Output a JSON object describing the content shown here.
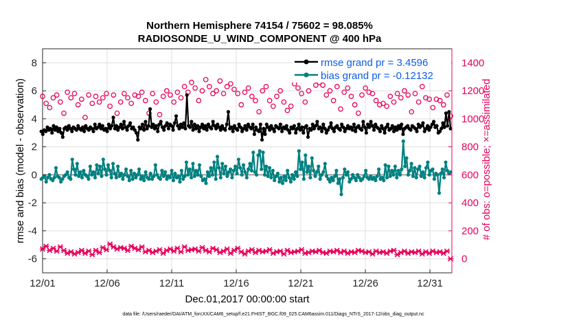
{
  "chart_data": {
    "type": "line",
    "title": "Northern Hemisphere 74154 / 75602 = 98.085%",
    "subtitle": "RADIOSONDE_U_WIND_COMPONENT @ 400 hPa",
    "xlabel": "Dec.01,2017 00:00:00 start",
    "ylabel_left": "rmse and bias (model - observation)",
    "ylabel_right": "# of obs: o=possible; ×=assimilated",
    "footer": "data file: /Users/raeder/DAI/ATM_forcXX/CAM6_setup/f.e21.FHIST_BGC.f09_025.CAM6assim.011/Diags_NTrS_2017-12/obs_diag_output.nc",
    "x_range": [
      0,
      31.7
    ],
    "y_left_range": [
      -7,
      9
    ],
    "y_right_range": [
      -100,
      1500
    ],
    "x_ticks": [
      0,
      5,
      10,
      15,
      20,
      25,
      30
    ],
    "x_tick_labels": [
      "12/01",
      "12/06",
      "12/11",
      "12/16",
      "12/21",
      "12/26",
      "12/31"
    ],
    "y_left_ticks": [
      -6,
      -4,
      -2,
      0,
      2,
      4,
      6,
      8
    ],
    "y_left_tick_labels": [
      "-6",
      "-4",
      "-2",
      "0",
      "2",
      "4",
      "6",
      "8"
    ],
    "y_right_ticks": [
      0,
      200,
      400,
      600,
      800,
      1000,
      1200,
      1400
    ],
    "y_right_tick_labels": [
      "0",
      "200",
      "400",
      "600",
      "800",
      "1000",
      "1200",
      "1400"
    ],
    "grid": true,
    "legend_position": "top-right",
    "series": [
      {
        "name": "rmse grand pr = 3.4596",
        "axis": "left",
        "color": "#000000",
        "values": [
          3.1,
          2.9,
          3.2,
          3.1,
          3.4,
          3.2,
          3.3,
          3.0,
          3.5,
          3.2,
          3.4,
          3.1,
          3.3,
          3.0,
          2.7,
          3.3,
          3.4,
          3.2,
          3.5,
          3.3,
          3.1,
          3.4,
          3.3,
          3.2,
          3.5,
          3.3,
          3.2,
          3.4,
          3.1,
          3.5,
          3.3,
          3.2,
          3.4,
          3.3,
          3.1,
          3.6,
          3.3,
          3.4,
          3.6,
          3.3,
          3.5,
          3.2,
          3.3,
          3.1,
          3.6,
          3.3,
          3.5,
          4.1,
          3.3,
          3.5,
          3.2,
          3.4,
          3.6,
          3.3,
          3.8,
          3.4,
          3.2,
          3.5,
          3.7,
          3.3,
          3.4,
          3.2,
          3.0,
          2.5,
          3.4,
          3.3,
          3.6,
          3.2,
          3.8,
          3.3,
          3.5,
          4.7,
          3.4,
          3.6,
          3.3,
          3.5,
          3.1,
          3.6,
          3.8,
          3.4,
          3.2,
          3.5,
          3.7,
          3.3,
          3.6,
          3.5,
          3.2,
          3.7,
          4.2,
          3.5,
          3.3,
          3.6,
          3.4,
          3.7,
          3.3,
          5.7,
          3.5,
          3.4,
          3.8,
          3.2,
          3.6,
          3.3,
          3.5,
          3.1,
          3.4,
          3.6,
          3.3,
          3.5,
          3.2,
          3.6,
          3.4,
          3.3,
          3.8,
          3.5,
          3.3,
          3.6,
          3.4,
          3.2,
          3.5,
          3.3,
          3.2,
          3.6,
          4.5,
          3.3,
          3.4,
          3.1,
          3.5,
          3.3,
          3.2,
          3.6,
          3.4,
          3.1,
          3.3,
          3.5,
          3.2,
          3.6,
          3.4,
          3.3,
          3.6,
          2.9,
          3.4,
          3.2,
          3.1,
          3.6,
          2.5,
          3.3,
          2.9,
          3.6,
          3.4,
          3.2,
          3.5,
          3.3,
          3.1,
          3.5,
          3.4,
          3.3,
          3.6,
          3.1,
          3.4,
          3.3,
          3.5,
          3.2,
          3.0,
          3.4,
          3.3,
          3.5,
          3.0,
          3.3,
          3.6,
          3.2,
          3.4,
          3.0,
          3.4,
          3.5,
          2.7,
          3.3,
          3.2,
          3.6,
          3.3,
          3.5,
          3.8,
          3.3,
          3.4,
          3.1,
          3.6,
          3.3,
          3.0,
          3.2,
          3.4,
          3.7,
          3.3,
          3.1,
          3.4,
          3.5,
          3.3,
          3.2,
          3.6,
          3.4,
          3.1,
          3.3,
          3.5,
          3.3,
          3.4,
          3.2,
          3.6,
          3.1,
          3.4,
          3.5,
          3.3,
          3.2,
          3.8,
          3.4,
          3.0,
          3.6,
          3.4,
          3.8,
          3.5,
          3.2,
          3.6,
          3.4,
          3.3,
          3.1,
          3.5,
          3.3,
          3.0,
          3.4,
          3.6,
          3.2,
          3.3,
          3.5,
          3.1,
          3.4,
          3.2,
          3.5,
          3.3,
          3.6,
          2.9,
          3.3,
          3.4,
          3.5,
          3.3,
          3.2,
          3.5,
          3.4,
          3.3,
          3.1,
          3.6,
          3.4,
          3.5,
          3.7,
          3.1,
          3.3,
          3.5,
          3.2,
          3.4,
          3.6,
          3.8,
          3.4,
          3.5,
          3.0,
          3.1,
          3.3,
          3.7,
          3.4,
          4.4,
          3.5,
          4.5,
          3.3
        ]
      },
      {
        "name": "bias grand pr = -0.12132",
        "axis": "left",
        "color": "#008080",
        "values": [
          -0.3,
          -0.2,
          -0.1,
          -0.5,
          -0.2,
          0.0,
          -0.3,
          -0.4,
          -0.2,
          0.5,
          -0.1,
          -0.2,
          -0.5,
          -0.3,
          -0.1,
          0.0,
          0.2,
          -0.2,
          -0.3,
          1.1,
          0.4,
          0.0,
          0.8,
          -0.1,
          0.2,
          -0.2,
          0.3,
          0.0,
          -0.1,
          -0.3,
          0.6,
          0.0,
          0.2,
          -0.2,
          0.7,
          0.1,
          0.6,
          -0.1,
          1.1,
          0.4,
          0.0,
          0.7,
          0.3,
          -0.2,
          0.8,
          0.1,
          -0.2,
          0.6,
          -0.1,
          0.1,
          -0.3,
          0.0,
          0.4,
          -0.1,
          -0.4,
          0.3,
          -0.3,
          0.1,
          -0.2,
          0.0,
          0.4,
          -0.3,
          -0.1,
          -0.4,
          0.2,
          -0.2,
          -0.3,
          0.1,
          -0.3,
          -0.1,
          0.7,
          0.0,
          -0.2,
          -0.3,
          0.3,
          -0.1,
          0.2,
          -0.3,
          -0.1,
          -0.2,
          0.3,
          -0.4,
          0.1,
          -0.2,
          -0.1,
          -0.5,
          0.3,
          -0.3,
          -0.1,
          0.9,
          0.0,
          0.4,
          -0.2,
          0.8,
          -0.1,
          0.3,
          0.0,
          0.7,
          -0.1,
          -0.4,
          -0.3,
          -0.6,
          0.2,
          -0.1,
          0.5,
          0.0,
          0.9,
          -0.3,
          1.3,
          0.5,
          -0.2,
          0.8,
          0.1,
          0.6,
          -0.1,
          0.2,
          0.4,
          -0.2,
          0.3,
          0.6,
          0.1,
          1.1,
          0.5,
          0.0,
          0.7,
          0.2,
          -0.2,
          0.4,
          0.8,
          0.3,
          1.6,
          0.2,
          0.0,
          1.4,
          1.7,
          0.4,
          1.6,
          0.0,
          0.6,
          -0.1,
          0.5,
          -0.2,
          0.3,
          -0.4,
          -0.1,
          0.1,
          -0.5,
          -0.2,
          -0.6,
          -0.1,
          -0.4,
          0.3,
          -0.2,
          -0.5,
          0.0,
          -0.3,
          0.2,
          -0.1,
          1.7,
          0.4,
          0.9,
          -0.3,
          1.4,
          0.2,
          0.6,
          -0.2,
          1.2,
          0.3,
          -0.1,
          0.2,
          0.6,
          -0.3,
          0.0,
          0.2,
          0.8,
          -0.1,
          -0.3,
          -0.5,
          -0.2,
          -0.4,
          -0.1,
          0.3,
          -0.6,
          -0.3,
          -1.4,
          -0.2,
          0.4,
          0.0,
          0.2,
          -0.5,
          -0.3,
          0.0,
          -0.2,
          -0.4,
          0.0,
          -0.2,
          -0.4,
          -0.3,
          -0.1,
          0.3,
          -0.2,
          -0.3,
          -0.1,
          -0.3,
          -0.2,
          -0.4,
          -0.1,
          0.4,
          -0.3,
          -0.2,
          -0.4,
          0.7,
          -0.2,
          0.6,
          -0.1,
          0.3,
          0.0,
          0.6,
          -0.2,
          0.3,
          0.0,
          0.4,
          2.4,
          0.6,
          1.2,
          0.0,
          0.3,
          0.8,
          -0.1,
          0.5,
          -0.2,
          0.4,
          0.6,
          -0.1,
          0.2,
          -0.2,
          0.5,
          0.9,
          0.0,
          0.3,
          0.4,
          -0.3,
          0.1,
          0.0,
          -1.3,
          0.1,
          0.4,
          -0.2,
          0.9,
          0.3,
          0.1,
          0.2
        ]
      },
      {
        "name": "possible",
        "axis": "right",
        "color": "#e8005a",
        "marker": "circle",
        "values": [
          1160,
          1110,
          1080,
          1150,
          1170,
          1120,
          1040,
          1190,
          1150,
          1180,
          1100,
          1140,
          1010,
          1170,
          1110,
          1160,
          1120,
          1150,
          1180,
          1090,
          1170,
          1040,
          1120,
          1180,
          1150,
          1110,
          1170,
          1160,
          1190,
          1130,
          1040,
          1180,
          1120,
          1030,
          1160,
          1200,
          1170,
          1120,
          1190,
          1150,
          1230,
          1190,
          1260,
          1220,
          1130,
          1200,
          1280,
          1230,
          1180,
          1200,
          1270,
          1180,
          1230,
          1250,
          1210,
          1180,
          1100,
          1190,
          1220,
          1160,
          1130,
          1050,
          1200,
          1230,
          1130,
          1090,
          1160,
          1200,
          1120,
          1060,
          1090,
          1250,
          1220,
          1180,
          1120,
          1200,
          1280,
          1240,
          1260,
          1240,
          1170,
          1200,
          1130,
          1230,
          1070,
          1190,
          1220,
          1160,
          1100,
          1040,
          1170,
          1220,
          1190,
          1180,
          1130,
          1100,
          1110,
          1090,
          1160,
          1120,
          1180,
          1150,
          1200,
          1170,
          1050,
          1180,
          1120,
          1230,
          1150,
          1140,
          1080,
          1140,
          1130,
          1100,
          1170,
          1020
        ]
      },
      {
        "name": "assimilated",
        "axis": "right",
        "color": "#e8005a",
        "marker": "cross",
        "values": [
          70,
          90,
          60,
          75,
          55,
          85,
          60,
          40,
          50,
          35,
          45,
          60,
          40,
          55,
          30,
          60,
          45,
          80,
          65,
          105,
          85,
          70,
          80,
          75,
          60,
          90,
          75,
          65,
          85,
          50,
          60,
          45,
          55,
          65,
          40,
          60,
          70,
          55,
          75,
          50,
          85,
          60,
          65,
          70,
          55,
          80,
          60,
          50,
          75,
          65,
          45,
          55,
          70,
          40,
          60,
          75,
          50,
          35,
          55,
          65,
          45,
          60,
          50,
          55,
          65,
          40,
          50,
          55,
          35,
          60,
          45,
          50,
          55,
          65,
          40,
          45,
          55,
          50,
          60,
          45,
          40,
          55,
          50,
          60,
          45,
          55,
          40,
          50,
          45,
          60,
          55,
          45,
          50,
          35,
          55,
          45,
          50,
          40,
          55,
          60,
          30,
          45,
          55,
          40,
          50,
          45,
          55,
          35,
          50,
          40,
          55,
          45,
          50,
          40,
          55,
          0
        ]
      }
    ]
  }
}
